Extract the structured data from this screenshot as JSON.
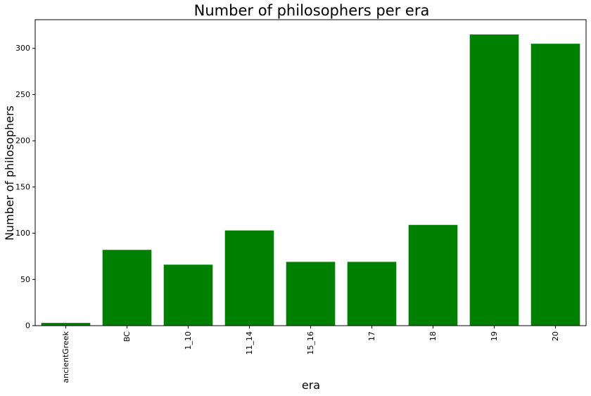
{
  "chart_data": {
    "type": "bar",
    "title": "Number of philosophers per era",
    "xlabel": "era",
    "ylabel": "Number of philosophers",
    "categories": [
      "ancientGreek",
      "BC",
      "1_10",
      "11_14",
      "15_16",
      "17",
      "18",
      "19",
      "20"
    ],
    "values": [
      3,
      82,
      66,
      103,
      69,
      69,
      109,
      315,
      305
    ],
    "ylim": [
      0,
      331
    ],
    "yticks": [
      0,
      50,
      100,
      150,
      200,
      250,
      300
    ],
    "grid": false,
    "color": "#008000"
  }
}
